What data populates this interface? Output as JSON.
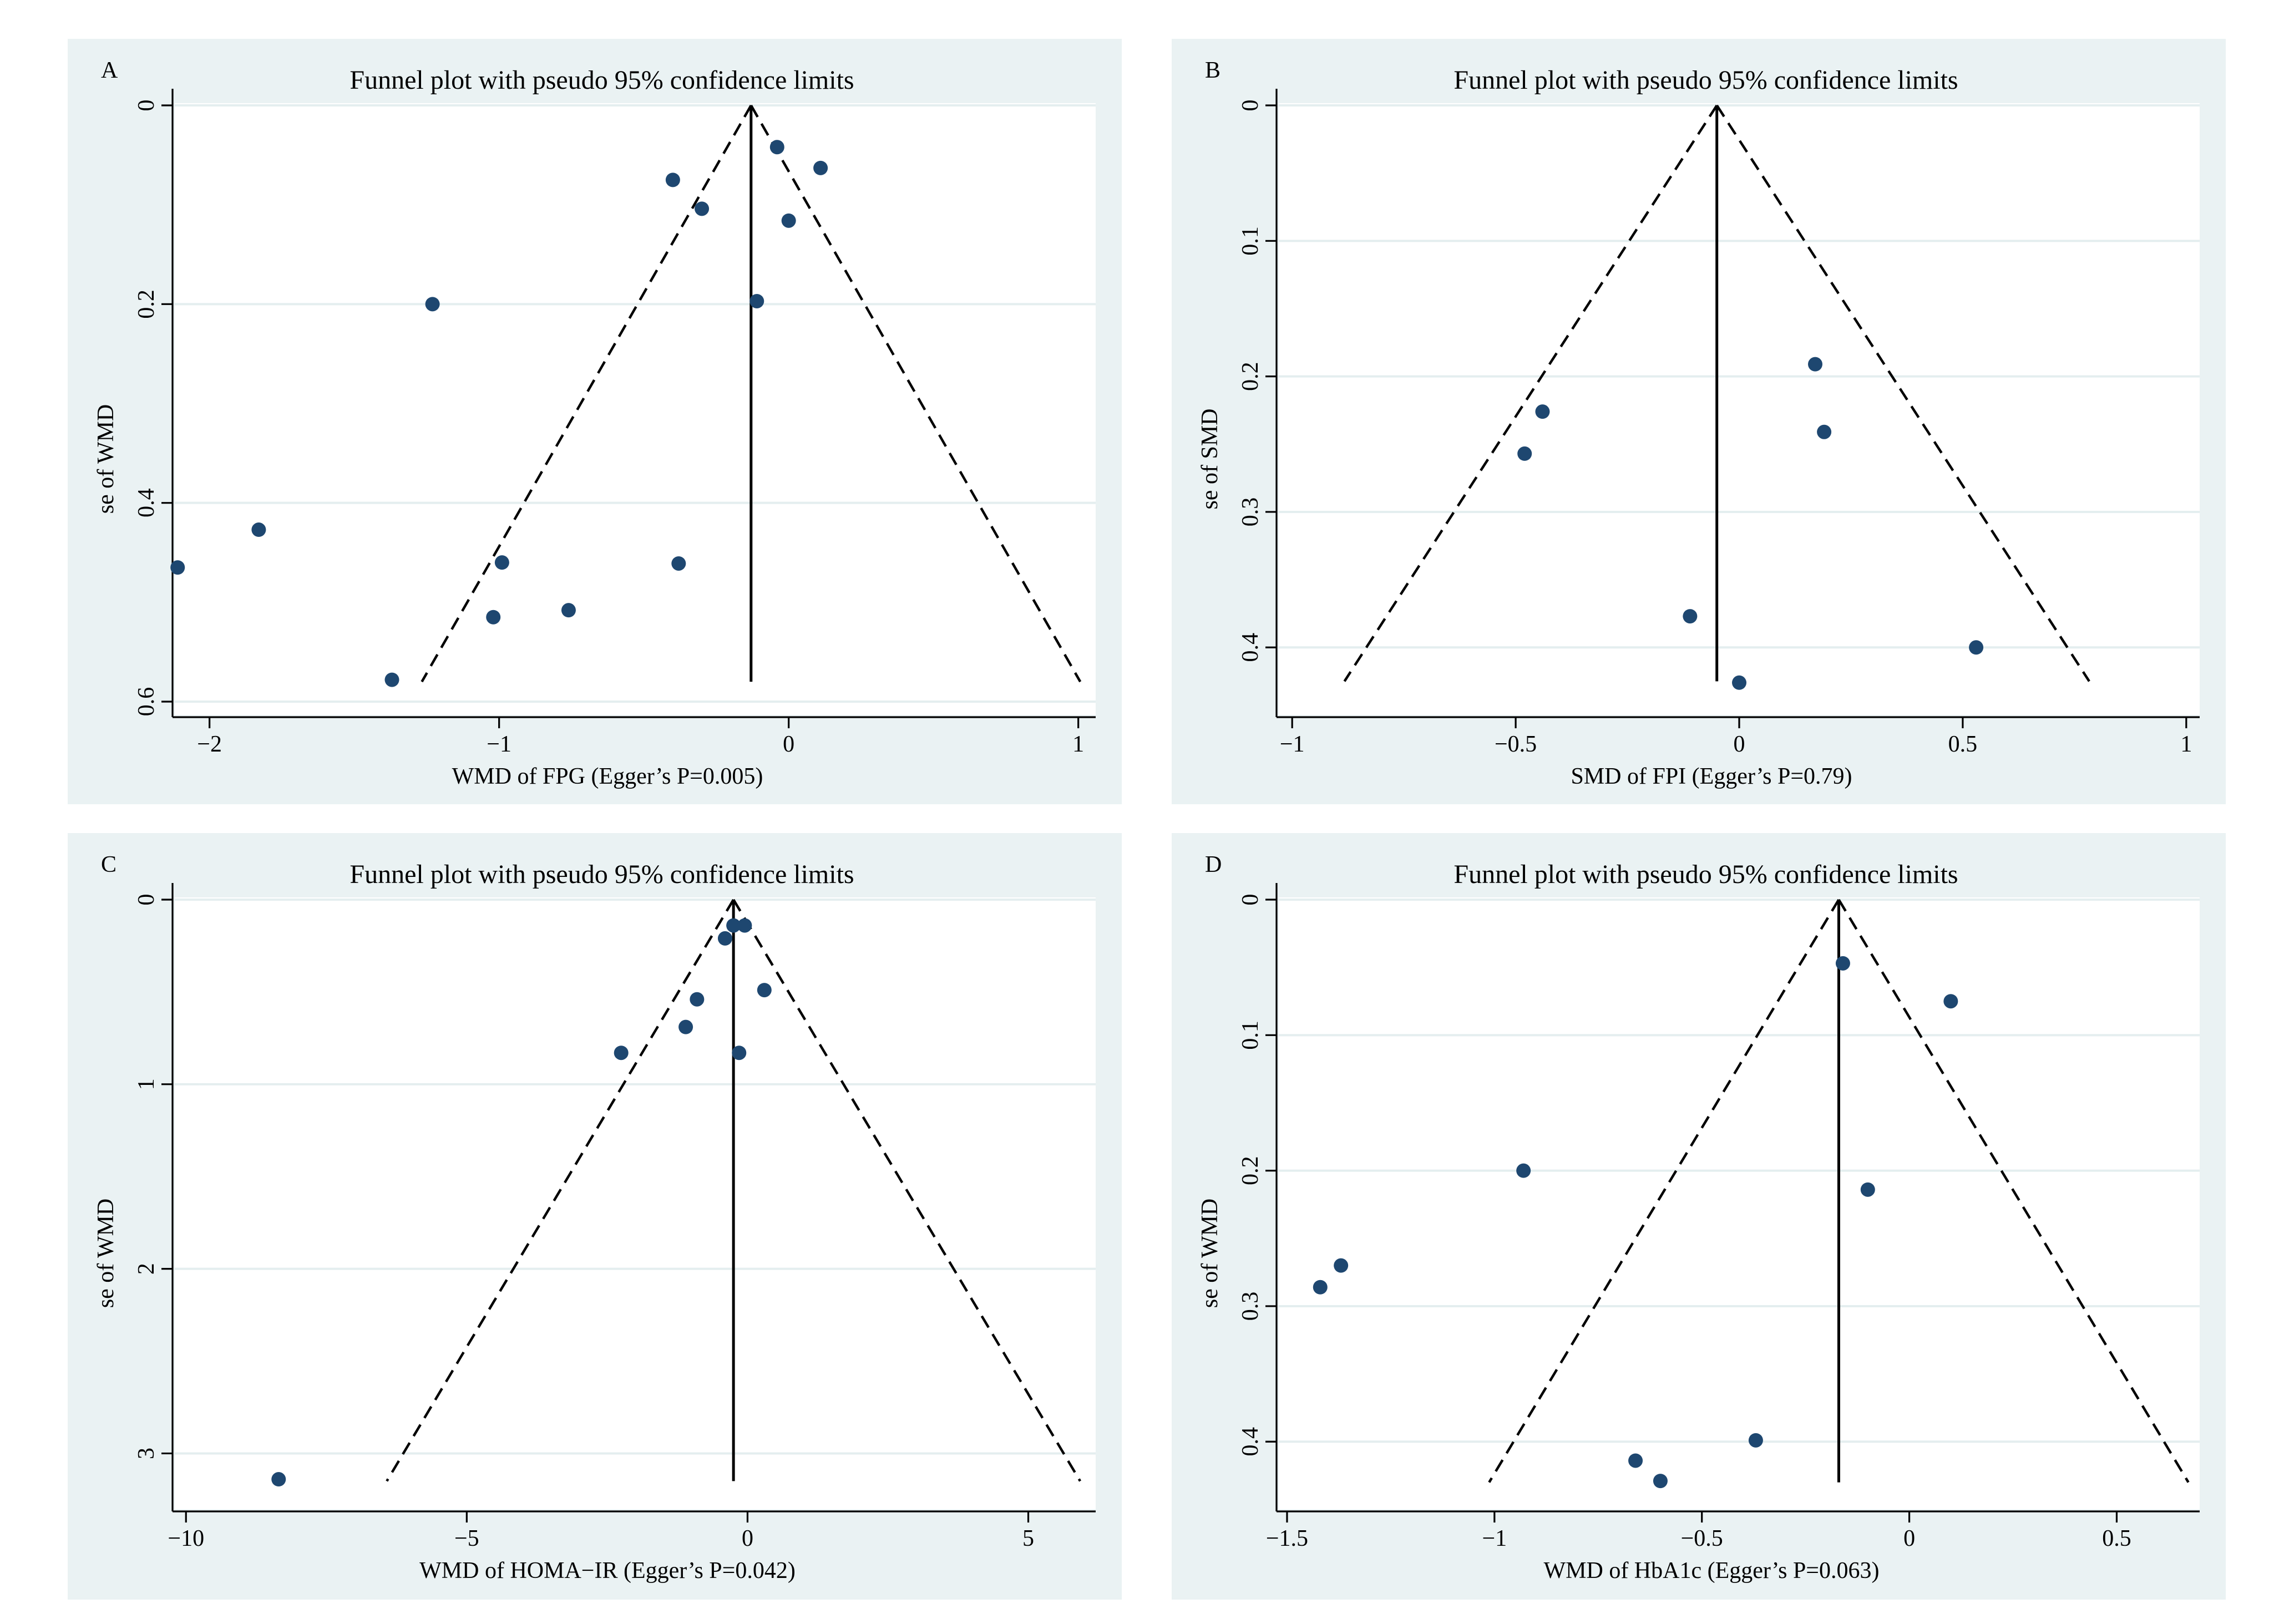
{
  "chart_data": [
    {
      "type": "scatter",
      "panel_label": "A",
      "title": "Funnel plot with pseudo 95% confidence limits",
      "xlabel": "WMD of FPG (Egger’s P=0.005)",
      "ylabel": "se of WMD",
      "xlim": [
        -2.12,
        1.06
      ],
      "ylim": [
        0,
        0.6
      ],
      "xticks": [
        -2,
        -1,
        0,
        1
      ],
      "xtick_labels": [
        "−2",
        "−1",
        "0",
        "1"
      ],
      "yticks": [
        0,
        0.2,
        0.4,
        0.6
      ],
      "ytick_labels": [
        "0",
        "0.2",
        "0.4",
        "0.6"
      ],
      "y_inverted": true,
      "pooled_effect": -0.13,
      "funnel_bottom_se": 0.58,
      "points": [
        {
          "x": -0.04,
          "y": 0.042
        },
        {
          "x": 0.11,
          "y": 0.063
        },
        {
          "x": -0.4,
          "y": 0.075
        },
        {
          "x": -0.3,
          "y": 0.104
        },
        {
          "x": 0.0,
          "y": 0.116
        },
        {
          "x": -1.23,
          "y": 0.2
        },
        {
          "x": -0.11,
          "y": 0.197
        },
        {
          "x": -1.83,
          "y": 0.427
        },
        {
          "x": -2.11,
          "y": 0.465
        },
        {
          "x": -0.99,
          "y": 0.46
        },
        {
          "x": -0.38,
          "y": 0.461
        },
        {
          "x": -1.02,
          "y": 0.515
        },
        {
          "x": -0.76,
          "y": 0.508
        },
        {
          "x": -1.37,
          "y": 0.578
        }
      ]
    },
    {
      "type": "scatter",
      "panel_label": "B",
      "title": "Funnel plot with pseudo 95% confidence limits",
      "xlabel": "SMD of FPI (Egger’s P=0.79)",
      "ylabel": "se of SMD",
      "xlim": [
        -1.03,
        1.03
      ],
      "ylim": [
        0,
        0.44
      ],
      "xticks": [
        -1,
        -0.5,
        0,
        0.5,
        1
      ],
      "xtick_labels": [
        "−1",
        "−0.5",
        "0",
        "0.5",
        "1"
      ],
      "yticks": [
        0,
        0.1,
        0.2,
        0.3,
        0.4
      ],
      "ytick_labels": [
        "0",
        "0.1",
        "0.2",
        "0.3",
        "0.4"
      ],
      "y_inverted": true,
      "pooled_effect": -0.05,
      "funnel_bottom_se": 0.425,
      "points": [
        {
          "x": 0.17,
          "y": 0.191
        },
        {
          "x": -0.44,
          "y": 0.226
        },
        {
          "x": -0.48,
          "y": 0.257
        },
        {
          "x": 0.19,
          "y": 0.241
        },
        {
          "x": -0.11,
          "y": 0.377
        },
        {
          "x": 0.53,
          "y": 0.4
        },
        {
          "x": 0.0,
          "y": 0.426
        }
      ]
    },
    {
      "type": "scatter",
      "panel_label": "C",
      "title": "Funnel plot with pseudo 95% confidence limits",
      "xlabel": "WMD of HOMA−IR (Egger’s P=0.042)",
      "ylabel": "se of WMD",
      "xlim": [
        -10.2,
        6.2
      ],
      "ylim": [
        0,
        3.23
      ],
      "xticks": [
        -10,
        -5,
        0,
        5
      ],
      "xtick_labels": [
        "−10",
        "−5",
        "0",
        "5"
      ],
      "yticks": [
        0,
        1,
        2,
        3
      ],
      "ytick_labels": [
        "0",
        "1",
        "2",
        "3"
      ],
      "y_inverted": true,
      "pooled_effect": -0.25,
      "funnel_bottom_se": 3.15,
      "points": [
        {
          "x": -0.25,
          "y": 0.14
        },
        {
          "x": -0.05,
          "y": 0.14
        },
        {
          "x": -0.4,
          "y": 0.21
        },
        {
          "x": 0.3,
          "y": 0.49
        },
        {
          "x": -0.9,
          "y": 0.54
        },
        {
          "x": -1.1,
          "y": 0.69
        },
        {
          "x": -2.25,
          "y": 0.83
        },
        {
          "x": -0.15,
          "y": 0.83
        },
        {
          "x": -8.35,
          "y": 3.14
        }
      ]
    },
    {
      "type": "scatter",
      "panel_label": "D",
      "title": "Funnel plot with pseudo 95% confidence limits",
      "xlabel": "WMD of HbA1c (Egger’s P=0.063)",
      "ylabel": "se of WMD",
      "xlim": [
        -1.52,
        0.7
      ],
      "ylim": [
        0,
        0.44
      ],
      "xticks": [
        -1.5,
        -1,
        -0.5,
        0,
        0.5
      ],
      "xtick_labels": [
        "−1.5",
        "−1",
        "−0.5",
        "0",
        "0.5"
      ],
      "yticks": [
        0,
        0.1,
        0.2,
        0.3,
        0.4
      ],
      "ytick_labels": [
        "0",
        "0.1",
        "0.2",
        "0.3",
        "0.4"
      ],
      "y_inverted": true,
      "pooled_effect": -0.17,
      "funnel_bottom_se": 0.43,
      "points": [
        {
          "x": -0.16,
          "y": 0.047
        },
        {
          "x": 0.1,
          "y": 0.075
        },
        {
          "x": -0.93,
          "y": 0.2
        },
        {
          "x": -0.1,
          "y": 0.214
        },
        {
          "x": -1.37,
          "y": 0.27
        },
        {
          "x": -1.42,
          "y": 0.286
        },
        {
          "x": -0.37,
          "y": 0.399
        },
        {
          "x": -0.66,
          "y": 0.414
        },
        {
          "x": -0.6,
          "y": 0.429
        }
      ]
    }
  ]
}
